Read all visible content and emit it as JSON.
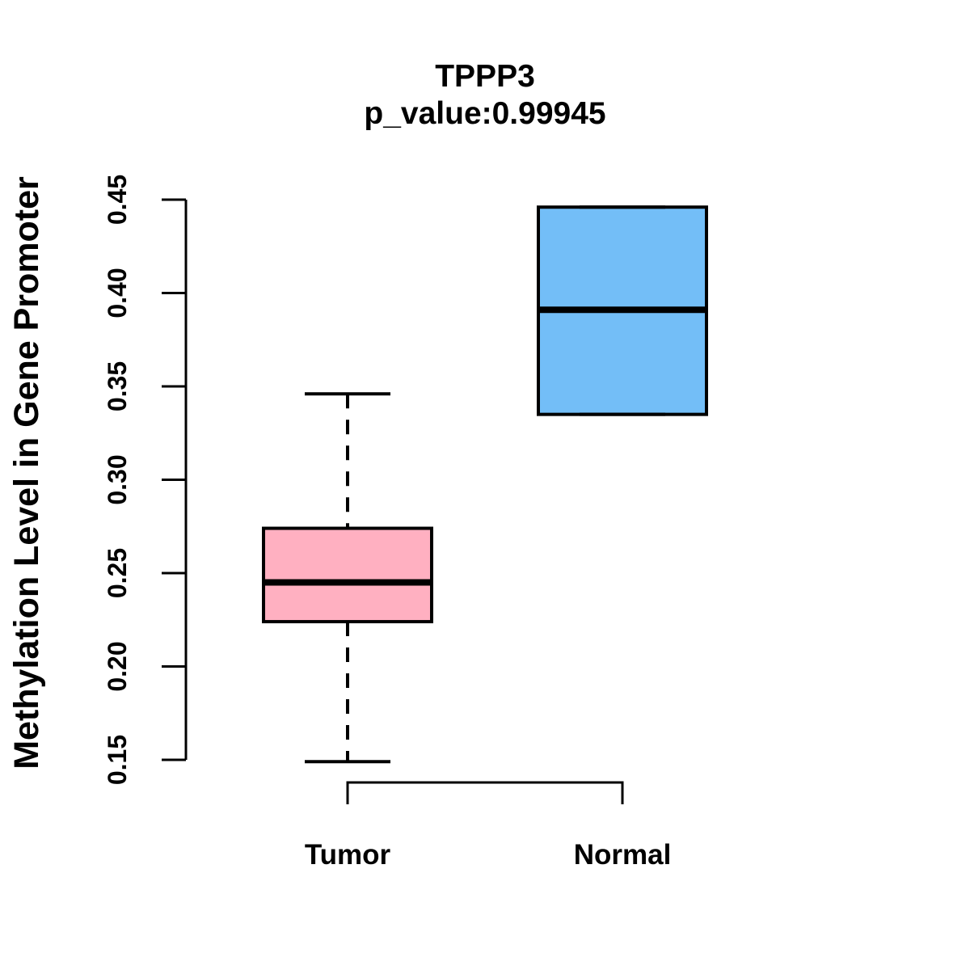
{
  "chart_data": {
    "type": "boxplot",
    "title": "TPPP3",
    "subtitle": "p_value:0.99945",
    "p_value": 0.99945,
    "ylabel": "Methylation Level in Gene Promoter",
    "xlabel": "",
    "categories": [
      "Tumor",
      "Normal"
    ],
    "y_ticks": [
      0.15,
      0.2,
      0.25,
      0.3,
      0.35,
      0.4,
      0.45
    ],
    "ylim": [
      0.137,
      0.458
    ],
    "grid": false,
    "legend": "none",
    "series": [
      {
        "name": "Tumor",
        "fill_color": "#FFB0C1",
        "whisker_low": 0.149,
        "q1": 0.224,
        "median": 0.245,
        "q3": 0.274,
        "whisker_high": 0.346
      },
      {
        "name": "Normal",
        "fill_color": "#73BEF7",
        "whisker_low": 0.335,
        "q1": 0.335,
        "median": 0.391,
        "q3": 0.446,
        "whisker_high": 0.446
      }
    ],
    "line_color": "#000000",
    "background_color": "#FFFFFF"
  }
}
